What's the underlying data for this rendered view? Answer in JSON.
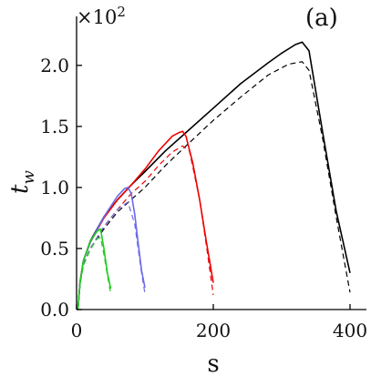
{
  "chart_data": {
    "type": "line",
    "panel_label": "(a)",
    "y_multiplier": "×10",
    "y_multiplier_exp": "2",
    "xlabel": "s",
    "ylabel_base": "t",
    "ylabel_sub": "w",
    "xlim": [
      0,
      400
    ],
    "ylim": [
      0,
      2.2
    ],
    "xticks": [
      0,
      200,
      400
    ],
    "xtick_labels": [
      "0",
      "200",
      "400"
    ],
    "yticks": [
      0.0,
      0.5,
      1.0,
      1.5,
      2.0
    ],
    "ytick_labels": [
      "0.0",
      "0.5",
      "1.0",
      "1.5",
      "2.0"
    ],
    "grid": false,
    "series": [
      {
        "color": "#000000",
        "style": "solid",
        "x": [
          2,
          5,
          10,
          20,
          40,
          60,
          80,
          100,
          130,
          160,
          200,
          240,
          280,
          300,
          320,
          330,
          340,
          360,
          380,
          400
        ],
        "y": [
          0.0,
          0.22,
          0.4,
          0.56,
          0.76,
          0.9,
          1.02,
          1.13,
          1.3,
          1.45,
          1.65,
          1.85,
          2.02,
          2.1,
          2.17,
          2.19,
          2.12,
          1.45,
          0.8,
          0.3
        ]
      },
      {
        "color": "#000000",
        "style": "dashed",
        "x": [
          2,
          5,
          10,
          20,
          40,
          60,
          80,
          100,
          130,
          160,
          200,
          240,
          280,
          310,
          330,
          340,
          360,
          380,
          400
        ],
        "y": [
          0.0,
          0.21,
          0.37,
          0.5,
          0.66,
          0.8,
          0.9,
          1.0,
          1.18,
          1.34,
          1.55,
          1.74,
          1.92,
          2.01,
          2.03,
          1.96,
          1.4,
          0.75,
          0.14
        ]
      },
      {
        "color": "#ee0000",
        "style": "solid",
        "x": [
          2,
          5,
          10,
          20,
          40,
          60,
          80,
          100,
          120,
          140,
          150,
          155,
          160,
          170,
          180,
          190,
          200
        ],
        "y": [
          0.0,
          0.23,
          0.4,
          0.55,
          0.75,
          0.9,
          1.02,
          1.15,
          1.3,
          1.42,
          1.45,
          1.46,
          1.42,
          1.2,
          0.9,
          0.55,
          0.22
        ]
      },
      {
        "color": "#ee0000",
        "style": "dashed",
        "x": [
          2,
          5,
          10,
          20,
          40,
          60,
          80,
          100,
          120,
          140,
          155,
          165,
          180,
          190,
          200
        ],
        "y": [
          0.0,
          0.22,
          0.37,
          0.5,
          0.68,
          0.82,
          0.95,
          1.05,
          1.18,
          1.29,
          1.34,
          1.3,
          0.9,
          0.52,
          0.12
        ]
      },
      {
        "color": "#6a6ae8",
        "style": "solid",
        "x": [
          2,
          5,
          10,
          20,
          40,
          60,
          70,
          75,
          80,
          85,
          90,
          95,
          100
        ],
        "y": [
          0.0,
          0.22,
          0.4,
          0.55,
          0.76,
          0.93,
          0.99,
          1.0,
          0.95,
          0.78,
          0.55,
          0.32,
          0.18
        ]
      },
      {
        "color": "#6a6ae8",
        "style": "dashed",
        "x": [
          2,
          5,
          10,
          20,
          40,
          60,
          75,
          85,
          90,
          95,
          100
        ],
        "y": [
          0.0,
          0.21,
          0.37,
          0.5,
          0.68,
          0.82,
          0.88,
          0.7,
          0.5,
          0.3,
          0.13
        ]
      },
      {
        "color": "#22cc22",
        "style": "solid",
        "x": [
          2,
          5,
          10,
          20,
          30,
          35,
          40,
          45,
          50
        ],
        "y": [
          0.0,
          0.22,
          0.4,
          0.56,
          0.64,
          0.66,
          0.5,
          0.3,
          0.17
        ]
      },
      {
        "color": "#22cc22",
        "style": "dashed",
        "x": [
          2,
          5,
          10,
          20,
          30,
          35,
          40,
          45,
          50
        ],
        "y": [
          0.0,
          0.2,
          0.36,
          0.49,
          0.58,
          0.59,
          0.45,
          0.28,
          0.13
        ]
      }
    ]
  }
}
